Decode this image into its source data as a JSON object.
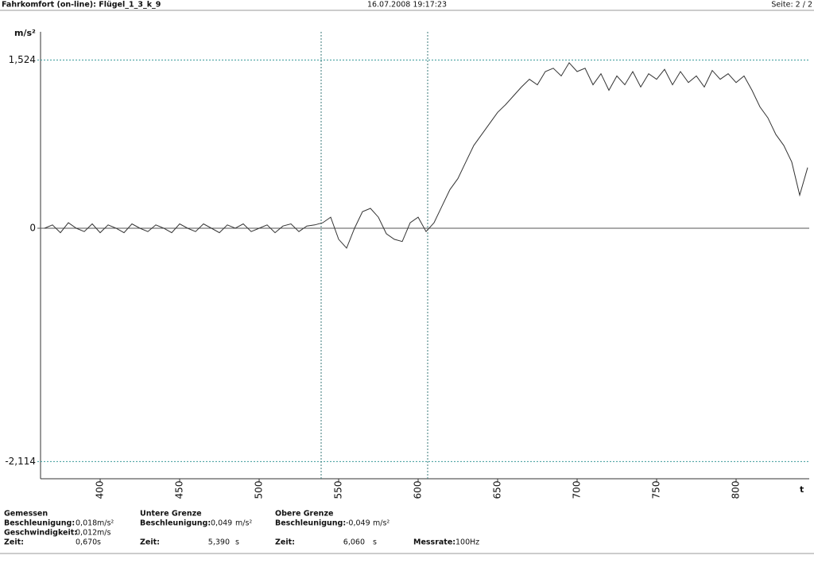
{
  "header": {
    "title": "Fahrkomfort (on-line): Flügel_1_3_k_9",
    "date": "16.07.2008 19:17:23",
    "page": "Seite: 2 / 2"
  },
  "chart_data": {
    "type": "line",
    "y_unit": "m/s²",
    "x_label": "t",
    "x": [
      365,
      370,
      375,
      380,
      385,
      390,
      395,
      400,
      405,
      410,
      415,
      420,
      425,
      430,
      435,
      440,
      445,
      450,
      455,
      460,
      465,
      470,
      475,
      480,
      485,
      490,
      495,
      500,
      505,
      510,
      515,
      520,
      525,
      530,
      535,
      540,
      545,
      550,
      555,
      560,
      565,
      570,
      575,
      580,
      585,
      590,
      595,
      600,
      605,
      610,
      615,
      620,
      625,
      630,
      635,
      640,
      645,
      650,
      655,
      660,
      665,
      670,
      675,
      680,
      685,
      690,
      695,
      700,
      705,
      710,
      715,
      720,
      725,
      730,
      735,
      740,
      745,
      750,
      755,
      760,
      765,
      770,
      775,
      780,
      785,
      790,
      795,
      800,
      805,
      810,
      815,
      820,
      825,
      830,
      835,
      840,
      845
    ],
    "series": [
      {
        "color": "#333333",
        "values": [
          0,
          0.03,
          -0.04,
          0.05,
          0,
          -0.03,
          0.04,
          -0.04,
          0.03,
          0,
          -0.04,
          0.04,
          0,
          -0.03,
          0.03,
          0,
          -0.04,
          0.04,
          0,
          -0.03,
          0.04,
          0,
          -0.04,
          0.03,
          0,
          0.04,
          -0.03,
          0,
          0.03,
          -0.04,
          0.02,
          0.04,
          -0.03,
          0.02,
          0.03,
          0.05,
          0.1,
          -0.1,
          -0.18,
          0,
          0.15,
          0.18,
          0.1,
          -0.05,
          -0.1,
          -0.12,
          0.05,
          0.1,
          -0.03,
          0.05,
          0.2,
          0.35,
          0.45,
          0.6,
          0.75,
          0.85,
          0.95,
          1.05,
          1.12,
          1.2,
          1.28,
          1.35,
          1.3,
          1.42,
          1.45,
          1.38,
          1.5,
          1.42,
          1.45,
          1.3,
          1.4,
          1.25,
          1.38,
          1.3,
          1.42,
          1.28,
          1.4,
          1.35,
          1.44,
          1.3,
          1.42,
          1.32,
          1.38,
          1.28,
          1.43,
          1.35,
          1.4,
          1.32,
          1.38,
          1.25,
          1.1,
          1.0,
          0.85,
          0.75,
          0.6,
          0.3,
          0.55
        ]
      }
    ],
    "xlim": [
      362.5,
      846
    ],
    "ylim": [
      -2.27,
      1.78
    ],
    "xticks": [
      400,
      450,
      500,
      550,
      600,
      650,
      700,
      750,
      800
    ],
    "yticks": [
      {
        "value": -2.114,
        "label": "-2,114"
      },
      0,
      {
        "value": 1.524,
        "label": "1,524"
      }
    ],
    "cursor_x": [
      539,
      606
    ]
  },
  "footer": {
    "panels": [
      {
        "title": "Gemessen",
        "rows": [
          [
            "Beschleunigung:",
            "0,018",
            "m/s²"
          ],
          [
            "Geschwindigkeit:",
            "0,012",
            "m/s"
          ],
          [
            "Zeit:",
            "0,670",
            "s"
          ]
        ]
      },
      {
        "title": "Untere Grenze",
        "rows": [
          [
            "Beschleunigung:",
            "0,049",
            "m/s²"
          ],
          [
            "Zeit:",
            "5,390",
            "s"
          ]
        ]
      },
      {
        "title": "Obere Grenze",
        "rows": [
          [
            "Beschleunigung:",
            "-0,049",
            "m/s²"
          ],
          [
            "Zeit:",
            "6,060",
            "s"
          ]
        ]
      }
    ],
    "rate": [
      "Messrate:",
      "100",
      "Hz"
    ]
  }
}
